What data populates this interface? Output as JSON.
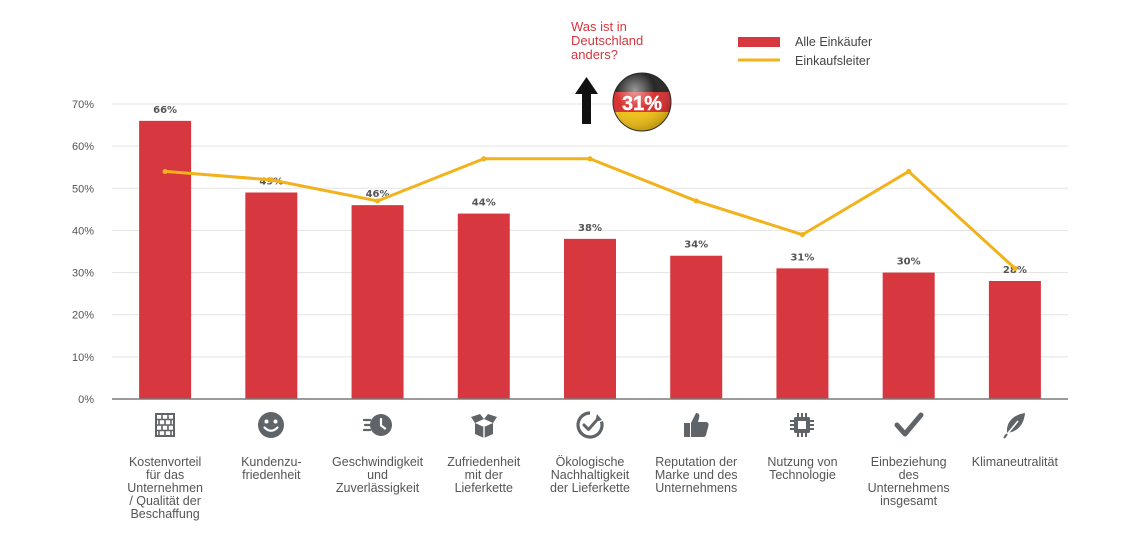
{
  "colors": {
    "bar": "#d7373f",
    "line": "#f2b21b",
    "axis": "#7a7a7a",
    "grid": "#e3e3e3",
    "icon": "#5f6469",
    "callout_text": "#d7373f"
  },
  "callout": {
    "lines": [
      "Was ist in",
      "Deutschland",
      "anders?"
    ],
    "badge_value": "31%",
    "arrow": "up-arrow-icon",
    "flag": "germany-flag-icon"
  },
  "chart_data": {
    "type": "bar",
    "title": "",
    "xlabel": "",
    "ylabel": "",
    "ylim": [
      0,
      70
    ],
    "yticks": [
      "0%",
      "10%",
      "20%",
      "30%",
      "40%",
      "50%",
      "60%",
      "70%"
    ],
    "grid": true,
    "legend_position": "top-right",
    "categories": [
      [
        "Kostenvorteil",
        "für das",
        "Unternehmen",
        "/ Qualität der",
        "Beschaffung"
      ],
      [
        "Kundenzu-",
        "friedenheit"
      ],
      [
        "Geschwindigkeit",
        "und",
        "Zuverlässigkeit"
      ],
      [
        "Zufriedenheit",
        "mit der",
        "Lieferkette"
      ],
      [
        "Ökologische",
        "Nachhaltigkeit",
        "der Lieferkette"
      ],
      [
        "Reputation der",
        "Marke und des",
        "Unternehmens"
      ],
      [
        "Nutzung von",
        "Technologie"
      ],
      [
        "Einbeziehung",
        "des",
        "Unternehmens",
        "insgesamt"
      ],
      [
        "Klimaneutralität"
      ]
    ],
    "category_icons": [
      "bricks-icon",
      "smiley-icon",
      "fast-clock-icon",
      "open-box-icon",
      "recycle-check-icon",
      "thumbs-up-icon",
      "chip-icon",
      "checkmark-icon",
      "leaf-icon"
    ],
    "series": [
      {
        "name": "Alle Einkäufer",
        "kind": "bar",
        "values": [
          66,
          49,
          46,
          44,
          38,
          34,
          31,
          30,
          28
        ],
        "labels": [
          "66%",
          "49%",
          "46%",
          "44%",
          "38%",
          "34%",
          "31%",
          "30%",
          "28%"
        ]
      },
      {
        "name": "Einkaufsleiter",
        "kind": "line",
        "values": [
          54,
          52,
          47,
          57,
          57,
          47,
          39,
          54,
          31
        ]
      }
    ]
  }
}
